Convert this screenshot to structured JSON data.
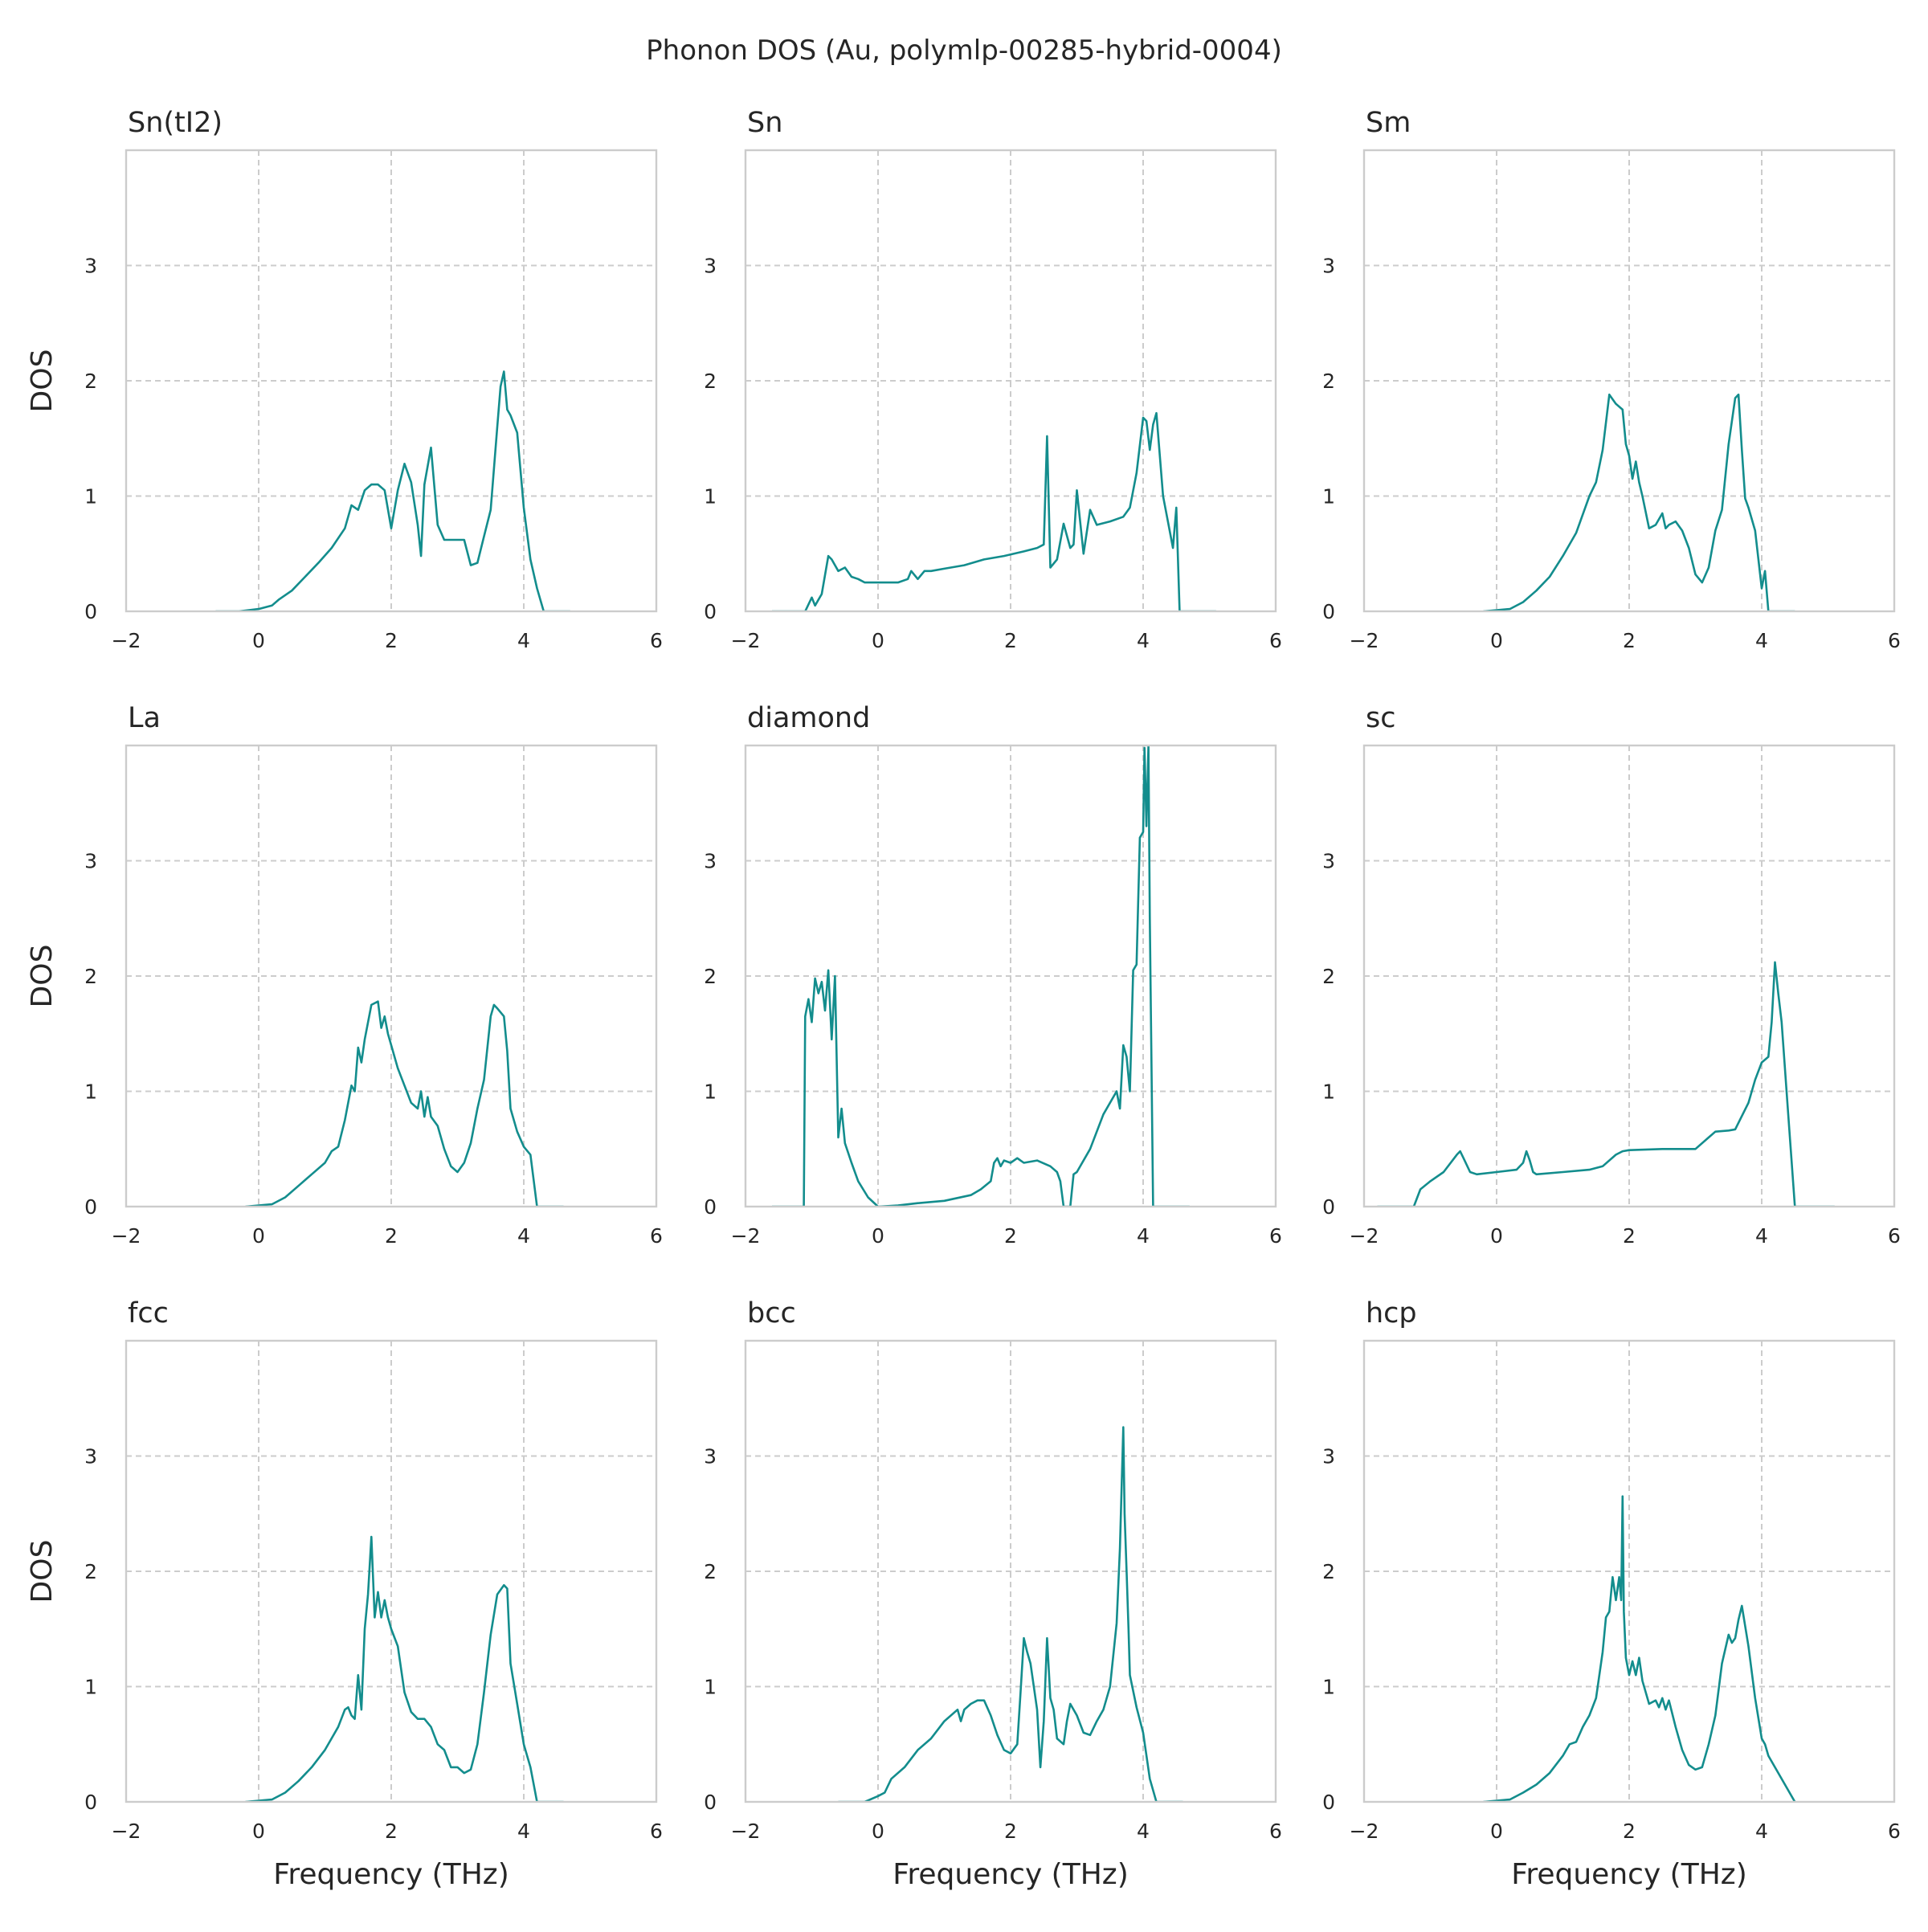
{
  "figure": {
    "title": "Phonon DOS (Au, polymlp-00285-hybrid-0004)",
    "line_color": "#138d8d",
    "grid_color": "#cccccc",
    "frame_color": "#cccccc"
  },
  "chart_data": [
    {
      "type": "line",
      "title": "Sn(tI2)",
      "xlabel": "",
      "ylabel": "DOS",
      "xlim": [
        -2,
        6
      ],
      "ylim": [
        0,
        4
      ],
      "xticks": [
        -2,
        0,
        2,
        4,
        6
      ],
      "yticks": [
        0,
        1,
        2,
        3
      ],
      "grid": true,
      "series": [
        {
          "x": [
            -0.65,
            -0.3,
            0.0,
            0.2,
            0.3,
            0.5,
            0.7,
            0.9,
            1.1,
            1.3,
            1.4,
            1.5,
            1.6,
            1.7,
            1.8,
            1.9,
            2.0,
            2.1,
            2.2,
            2.3,
            2.4,
            2.45,
            2.5,
            2.6,
            2.7,
            2.8,
            2.9,
            3.1,
            3.2,
            3.3,
            3.4,
            3.5,
            3.6,
            3.65,
            3.7,
            3.75,
            3.8,
            3.9,
            4.0,
            4.1,
            4.2,
            4.3,
            4.7
          ],
          "y": [
            0.0,
            0.0,
            0.02,
            0.05,
            0.1,
            0.18,
            0.3,
            0.42,
            0.55,
            0.72,
            0.92,
            0.88,
            1.05,
            1.1,
            1.1,
            1.05,
            0.72,
            1.05,
            1.28,
            1.12,
            0.75,
            0.48,
            1.1,
            1.42,
            0.75,
            0.62,
            0.62,
            0.62,
            0.4,
            0.42,
            0.65,
            0.88,
            1.6,
            1.95,
            2.08,
            1.75,
            1.7,
            1.55,
            0.9,
            0.45,
            0.2,
            0.0,
            0.0
          ]
        }
      ]
    },
    {
      "type": "line",
      "title": "Sn",
      "xlabel": "",
      "ylabel": "",
      "xlim": [
        -2,
        6
      ],
      "ylim": [
        0,
        4
      ],
      "xticks": [
        -2,
        0,
        2,
        4,
        6
      ],
      "yticks": [
        0,
        1,
        2,
        3
      ],
      "grid": true,
      "series": [
        {
          "x": [
            -1.6,
            -1.1,
            -1.0,
            -0.95,
            -0.85,
            -0.75,
            -0.7,
            -0.6,
            -0.5,
            -0.4,
            -0.3,
            -0.2,
            0.0,
            0.3,
            0.45,
            0.5,
            0.6,
            0.7,
            0.8,
            1.0,
            1.3,
            1.6,
            1.9,
            2.2,
            2.4,
            2.5,
            2.55,
            2.6,
            2.7,
            2.8,
            2.9,
            2.95,
            3.0,
            3.1,
            3.2,
            3.3,
            3.5,
            3.7,
            3.8,
            3.9,
            4.0,
            4.05,
            4.1,
            4.15,
            4.2,
            4.3,
            4.4,
            4.45,
            4.5,
            4.55,
            5.1
          ],
          "y": [
            0.0,
            0.0,
            0.12,
            0.05,
            0.15,
            0.48,
            0.45,
            0.35,
            0.38,
            0.3,
            0.28,
            0.25,
            0.25,
            0.25,
            0.28,
            0.35,
            0.28,
            0.35,
            0.35,
            0.37,
            0.4,
            0.45,
            0.48,
            0.52,
            0.55,
            0.58,
            1.52,
            0.38,
            0.45,
            0.76,
            0.55,
            0.58,
            1.05,
            0.5,
            0.88,
            0.75,
            0.78,
            0.82,
            0.9,
            1.2,
            1.68,
            1.65,
            1.4,
            1.62,
            1.72,
            1.0,
            0.7,
            0.55,
            0.9,
            0.0,
            0.0
          ]
        }
      ]
    },
    {
      "type": "line",
      "title": "Sm",
      "xlabel": "",
      "ylabel": "",
      "xlim": [
        -2,
        6
      ],
      "ylim": [
        0,
        4
      ],
      "xticks": [
        -2,
        0,
        2,
        4,
        6
      ],
      "yticks": [
        0,
        1,
        2,
        3
      ],
      "grid": true,
      "series": [
        {
          "x": [
            -0.2,
            0.2,
            0.4,
            0.6,
            0.8,
            1.0,
            1.2,
            1.4,
            1.5,
            1.6,
            1.7,
            1.8,
            1.9,
            1.95,
            2.0,
            2.05,
            2.1,
            2.15,
            2.2,
            2.3,
            2.4,
            2.5,
            2.55,
            2.6,
            2.7,
            2.8,
            2.9,
            3.0,
            3.1,
            3.2,
            3.3,
            3.4,
            3.5,
            3.6,
            3.65,
            3.7,
            3.75,
            3.8,
            3.9,
            4.0,
            4.05,
            4.1,
            4.5
          ],
          "y": [
            0.0,
            0.02,
            0.08,
            0.18,
            0.3,
            0.48,
            0.68,
            1.0,
            1.12,
            1.4,
            1.88,
            1.8,
            1.75,
            1.45,
            1.35,
            1.15,
            1.3,
            1.12,
            1.0,
            0.72,
            0.75,
            0.85,
            0.72,
            0.75,
            0.78,
            0.7,
            0.55,
            0.32,
            0.25,
            0.38,
            0.7,
            0.88,
            1.45,
            1.85,
            1.88,
            1.4,
            0.98,
            0.9,
            0.7,
            0.2,
            0.35,
            0.0,
            0.0
          ]
        }
      ]
    },
    {
      "type": "line",
      "title": "La",
      "xlabel": "",
      "ylabel": "DOS",
      "xlim": [
        -2,
        6
      ],
      "ylim": [
        0,
        4
      ],
      "xticks": [
        -2,
        0,
        2,
        4,
        6
      ],
      "yticks": [
        0,
        1,
        2,
        3
      ],
      "grid": true,
      "series": [
        {
          "x": [
            -0.2,
            0.2,
            0.4,
            0.6,
            0.8,
            1.0,
            1.1,
            1.2,
            1.3,
            1.4,
            1.45,
            1.5,
            1.55,
            1.6,
            1.7,
            1.8,
            1.85,
            1.9,
            1.95,
            2.0,
            2.1,
            2.2,
            2.3,
            2.4,
            2.45,
            2.5,
            2.55,
            2.6,
            2.7,
            2.8,
            2.9,
            3.0,
            3.1,
            3.2,
            3.3,
            3.4,
            3.5,
            3.55,
            3.6,
            3.7,
            3.75,
            3.8,
            3.9,
            4.0,
            4.1,
            4.2,
            4.6
          ],
          "y": [
            0.0,
            0.02,
            0.08,
            0.18,
            0.28,
            0.38,
            0.48,
            0.52,
            0.75,
            1.05,
            1.0,
            1.38,
            1.25,
            1.45,
            1.75,
            1.78,
            1.55,
            1.65,
            1.5,
            1.4,
            1.2,
            1.05,
            0.9,
            0.85,
            1.0,
            0.78,
            0.95,
            0.78,
            0.7,
            0.5,
            0.35,
            0.3,
            0.38,
            0.55,
            0.85,
            1.1,
            1.65,
            1.75,
            1.72,
            1.65,
            1.35,
            0.85,
            0.65,
            0.52,
            0.45,
            0.0,
            0.0
          ]
        }
      ]
    },
    {
      "type": "line",
      "title": "diamond",
      "xlabel": "",
      "ylabel": "",
      "xlim": [
        -2,
        6
      ],
      "ylim": [
        0,
        4
      ],
      "xticks": [
        -2,
        0,
        2,
        4,
        6
      ],
      "yticks": [
        0,
        1,
        2,
        3
      ],
      "grid": true,
      "series": [
        {
          "x": [
            -1.6,
            -1.12,
            -1.1,
            -1.05,
            -1.0,
            -0.95,
            -0.9,
            -0.85,
            -0.8,
            -0.75,
            -0.7,
            -0.65,
            -0.6,
            -0.55,
            -0.5,
            -0.4,
            -0.3,
            -0.15,
            0.0,
            0.3,
            0.6,
            1.0,
            1.4,
            1.55,
            1.7,
            1.75,
            1.8,
            1.85,
            1.9,
            2.0,
            2.1,
            2.2,
            2.4,
            2.6,
            2.7,
            2.75,
            2.8,
            2.9,
            2.95,
            3.0,
            3.2,
            3.4,
            3.6,
            3.65,
            3.7,
            3.75,
            3.8,
            3.85,
            3.9,
            3.95,
            4.0,
            4.02,
            4.05,
            4.08,
            4.1,
            4.15,
            4.7
          ],
          "y": [
            0.0,
            0.0,
            1.65,
            1.8,
            1.6,
            1.98,
            1.85,
            1.95,
            1.7,
            2.05,
            1.45,
            2.0,
            0.6,
            0.85,
            0.55,
            0.38,
            0.22,
            0.08,
            0.0,
            0.01,
            0.03,
            0.05,
            0.1,
            0.15,
            0.22,
            0.38,
            0.42,
            0.35,
            0.4,
            0.38,
            0.42,
            0.38,
            0.4,
            0.35,
            0.3,
            0.22,
            0.0,
            0.0,
            0.28,
            0.3,
            0.5,
            0.8,
            1.0,
            0.85,
            1.4,
            1.3,
            1.0,
            2.05,
            2.1,
            3.2,
            3.25,
            3.98,
            3.3,
            4.0,
            2.5,
            0.0,
            0.0
          ]
        }
      ]
    },
    {
      "type": "line",
      "title": "sc",
      "xlabel": "",
      "ylabel": "",
      "xlim": [
        -2,
        6
      ],
      "ylim": [
        0,
        4
      ],
      "xticks": [
        -2,
        0,
        2,
        4,
        6
      ],
      "yticks": [
        0,
        1,
        2,
        3
      ],
      "grid": true,
      "series": [
        {
          "x": [
            -1.8,
            -1.25,
            -1.15,
            -1.0,
            -0.8,
            -0.6,
            -0.55,
            -0.5,
            -0.4,
            -0.3,
            0.0,
            0.3,
            0.4,
            0.45,
            0.5,
            0.55,
            0.6,
            1.0,
            1.4,
            1.6,
            1.8,
            1.9,
            2.0,
            2.5,
            3.0,
            3.2,
            3.3,
            3.5,
            3.6,
            3.8,
            3.9,
            4.0,
            4.1,
            4.15,
            4.2,
            4.25,
            4.3,
            4.4,
            4.5,
            5.1
          ],
          "y": [
            0.0,
            0.0,
            0.15,
            0.22,
            0.3,
            0.45,
            0.48,
            0.42,
            0.3,
            0.28,
            0.3,
            0.32,
            0.38,
            0.48,
            0.4,
            0.3,
            0.28,
            0.3,
            0.32,
            0.35,
            0.45,
            0.48,
            0.49,
            0.5,
            0.5,
            0.6,
            0.65,
            0.66,
            0.67,
            0.9,
            1.1,
            1.25,
            1.3,
            1.6,
            2.12,
            1.85,
            1.6,
            0.8,
            0.0,
            0.0
          ]
        }
      ]
    },
    {
      "type": "line",
      "title": "fcc",
      "xlabel": "Frequency (THz)",
      "ylabel": "DOS",
      "xlim": [
        -2,
        6
      ],
      "ylim": [
        0,
        4
      ],
      "xticks": [
        -2,
        0,
        2,
        4,
        6
      ],
      "yticks": [
        0,
        1,
        2,
        3
      ],
      "grid": true,
      "series": [
        {
          "x": [
            -0.2,
            0.2,
            0.4,
            0.6,
            0.8,
            1.0,
            1.2,
            1.3,
            1.35,
            1.4,
            1.45,
            1.5,
            1.55,
            1.6,
            1.65,
            1.7,
            1.75,
            1.8,
            1.85,
            1.9,
            1.95,
            2.0,
            2.1,
            2.2,
            2.3,
            2.4,
            2.5,
            2.6,
            2.7,
            2.8,
            2.9,
            3.0,
            3.1,
            3.2,
            3.3,
            3.4,
            3.5,
            3.6,
            3.7,
            3.75,
            3.8,
            3.9,
            4.0,
            4.1,
            4.2,
            4.6
          ],
          "y": [
            0.0,
            0.02,
            0.08,
            0.18,
            0.3,
            0.45,
            0.65,
            0.8,
            0.82,
            0.75,
            0.72,
            1.1,
            0.8,
            1.5,
            1.8,
            2.3,
            1.6,
            1.82,
            1.6,
            1.75,
            1.6,
            1.5,
            1.35,
            0.95,
            0.78,
            0.72,
            0.72,
            0.65,
            0.5,
            0.45,
            0.3,
            0.3,
            0.25,
            0.28,
            0.5,
            0.95,
            1.45,
            1.8,
            1.88,
            1.85,
            1.2,
            0.85,
            0.5,
            0.3,
            0.0,
            0.0
          ]
        }
      ]
    },
    {
      "type": "line",
      "title": "bcc",
      "xlabel": "Frequency (THz)",
      "ylabel": "",
      "xlim": [
        -2,
        6
      ],
      "ylim": [
        0,
        4
      ],
      "xticks": [
        -2,
        0,
        2,
        4,
        6
      ],
      "yticks": [
        0,
        1,
        2,
        3
      ],
      "grid": true,
      "series": [
        {
          "x": [
            -0.6,
            -0.2,
            0.0,
            0.1,
            0.2,
            0.4,
            0.6,
            0.8,
            1.0,
            1.2,
            1.25,
            1.3,
            1.4,
            1.5,
            1.6,
            1.7,
            1.8,
            1.9,
            2.0,
            2.1,
            2.15,
            2.2,
            2.25,
            2.3,
            2.4,
            2.45,
            2.5,
            2.55,
            2.6,
            2.65,
            2.7,
            2.8,
            2.85,
            2.9,
            3.0,
            3.1,
            3.2,
            3.3,
            3.4,
            3.5,
            3.6,
            3.65,
            3.7,
            3.72,
            3.75,
            3.78,
            3.8,
            3.9,
            4.0,
            4.1,
            4.2,
            4.6
          ],
          "y": [
            0.0,
            0.0,
            0.05,
            0.08,
            0.2,
            0.3,
            0.45,
            0.55,
            0.7,
            0.8,
            0.7,
            0.8,
            0.85,
            0.88,
            0.88,
            0.75,
            0.58,
            0.45,
            0.42,
            0.5,
            0.95,
            1.42,
            1.3,
            1.2,
            0.8,
            0.3,
            0.7,
            1.42,
            0.9,
            0.8,
            0.55,
            0.5,
            0.7,
            0.85,
            0.75,
            0.6,
            0.58,
            0.7,
            0.8,
            1.0,
            1.55,
            2.2,
            3.25,
            2.5,
            2.0,
            1.5,
            1.1,
            0.82,
            0.6,
            0.2,
            0.0,
            0.0
          ]
        }
      ]
    },
    {
      "type": "line",
      "title": "hcp",
      "xlabel": "Frequency (THz)",
      "ylabel": "",
      "xlim": [
        -2,
        6
      ],
      "ylim": [
        0,
        4
      ],
      "xticks": [
        -2,
        0,
        2,
        4,
        6
      ],
      "yticks": [
        0,
        1,
        2,
        3
      ],
      "grid": true,
      "series": [
        {
          "x": [
            -0.2,
            0.2,
            0.4,
            0.6,
            0.8,
            1.0,
            1.1,
            1.2,
            1.3,
            1.4,
            1.5,
            1.6,
            1.65,
            1.7,
            1.75,
            1.8,
            1.85,
            1.88,
            1.9,
            1.92,
            1.95,
            2.0,
            2.05,
            2.1,
            2.15,
            2.2,
            2.3,
            2.4,
            2.45,
            2.5,
            2.55,
            2.6,
            2.7,
            2.8,
            2.9,
            3.0,
            3.1,
            3.2,
            3.3,
            3.4,
            3.5,
            3.55,
            3.6,
            3.65,
            3.7,
            3.8,
            3.9,
            4.0,
            4.05,
            4.1,
            4.5
          ],
          "y": [
            0.0,
            0.02,
            0.08,
            0.15,
            0.25,
            0.4,
            0.5,
            0.52,
            0.65,
            0.75,
            0.9,
            1.3,
            1.6,
            1.65,
            1.95,
            1.75,
            1.95,
            1.75,
            2.65,
            1.65,
            1.25,
            1.1,
            1.22,
            1.1,
            1.25,
            1.05,
            0.85,
            0.88,
            0.82,
            0.9,
            0.8,
            0.88,
            0.65,
            0.45,
            0.32,
            0.28,
            0.3,
            0.5,
            0.75,
            1.2,
            1.45,
            1.38,
            1.42,
            1.58,
            1.7,
            1.35,
            0.9,
            0.55,
            0.5,
            0.4,
            0.0
          ]
        }
      ]
    }
  ]
}
